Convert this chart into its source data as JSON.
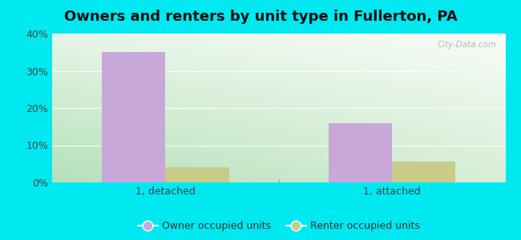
{
  "title": "Owners and renters by unit type in Fullerton, PA",
  "categories": [
    "1, detached",
    "1, attached"
  ],
  "owner_values": [
    35,
    16
  ],
  "renter_values": [
    4,
    5.5
  ],
  "owner_color": "#c8a8d8",
  "renter_color": "#c8cc88",
  "ylim": [
    0,
    40
  ],
  "yticks": [
    0,
    10,
    20,
    30,
    40
  ],
  "ytick_labels": [
    "0%",
    "10%",
    "20%",
    "30%",
    "40%"
  ],
  "legend_owner": "Owner occupied units",
  "legend_renter": "Renter occupied units",
  "bar_width": 0.28,
  "background_outer": "#00e8f0",
  "watermark": "City-Data.com",
  "title_fontsize": 13,
  "tick_fontsize": 9
}
